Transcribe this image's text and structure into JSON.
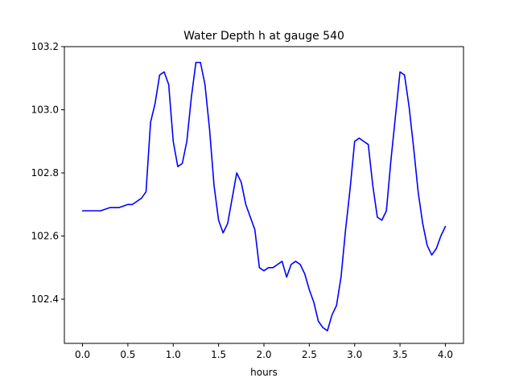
{
  "chart_data": {
    "type": "line",
    "title": "Water Depth h at gauge 540",
    "xlabel": "hours",
    "ylabel": "",
    "xlim": [
      -0.2,
      4.2
    ],
    "ylim": [
      102.26,
      103.2
    ],
    "xticks": [
      0.0,
      0.5,
      1.0,
      1.5,
      2.0,
      2.5,
      3.0,
      3.5,
      4.0
    ],
    "xtick_labels": [
      "0.0",
      "0.5",
      "1.0",
      "1.5",
      "2.0",
      "2.5",
      "3.0",
      "3.5",
      "4.0"
    ],
    "yticks": [
      102.4,
      102.6,
      102.8,
      103.0,
      103.2
    ],
    "ytick_labels": [
      "102.4",
      "102.6",
      "102.8",
      "103.0",
      "103.2"
    ],
    "grid": false,
    "legend": "none",
    "series": [
      {
        "color": "#0000ff",
        "x": [
          0.0,
          0.1,
          0.2,
          0.3,
          0.4,
          0.5,
          0.55,
          0.6,
          0.65,
          0.7,
          0.75,
          0.8,
          0.85,
          0.9,
          0.95,
          1.0,
          1.05,
          1.1,
          1.15,
          1.2,
          1.25,
          1.3,
          1.35,
          1.4,
          1.45,
          1.5,
          1.55,
          1.6,
          1.65,
          1.7,
          1.75,
          1.8,
          1.85,
          1.9,
          1.95,
          2.0,
          2.05,
          2.1,
          2.15,
          2.2,
          2.25,
          2.3,
          2.35,
          2.4,
          2.45,
          2.5,
          2.55,
          2.6,
          2.65,
          2.7,
          2.75,
          2.8,
          2.85,
          2.9,
          2.95,
          3.0,
          3.05,
          3.1,
          3.15,
          3.2,
          3.25,
          3.3,
          3.35,
          3.4,
          3.45,
          3.5,
          3.55,
          3.6,
          3.65,
          3.7,
          3.75,
          3.8,
          3.85,
          3.9,
          3.95,
          4.0
        ],
        "y": [
          102.68,
          102.68,
          102.68,
          102.69,
          102.69,
          102.7,
          102.7,
          102.71,
          102.72,
          102.74,
          102.96,
          103.02,
          103.11,
          103.12,
          103.08,
          102.9,
          102.82,
          102.83,
          102.9,
          103.04,
          103.15,
          103.15,
          103.08,
          102.94,
          102.76,
          102.65,
          102.61,
          102.64,
          102.72,
          102.8,
          102.77,
          102.7,
          102.66,
          102.62,
          102.5,
          102.49,
          102.5,
          102.5,
          102.51,
          102.52,
          102.47,
          102.51,
          102.52,
          102.51,
          102.48,
          102.43,
          102.39,
          102.33,
          102.31,
          102.3,
          102.35,
          102.38,
          102.47,
          102.62,
          102.75,
          102.9,
          102.91,
          102.9,
          102.89,
          102.76,
          102.66,
          102.65,
          102.68,
          102.84,
          102.98,
          103.12,
          103.11,
          103.01,
          102.88,
          102.74,
          102.64,
          102.57,
          102.54,
          102.56,
          102.6,
          102.63
        ]
      }
    ]
  }
}
